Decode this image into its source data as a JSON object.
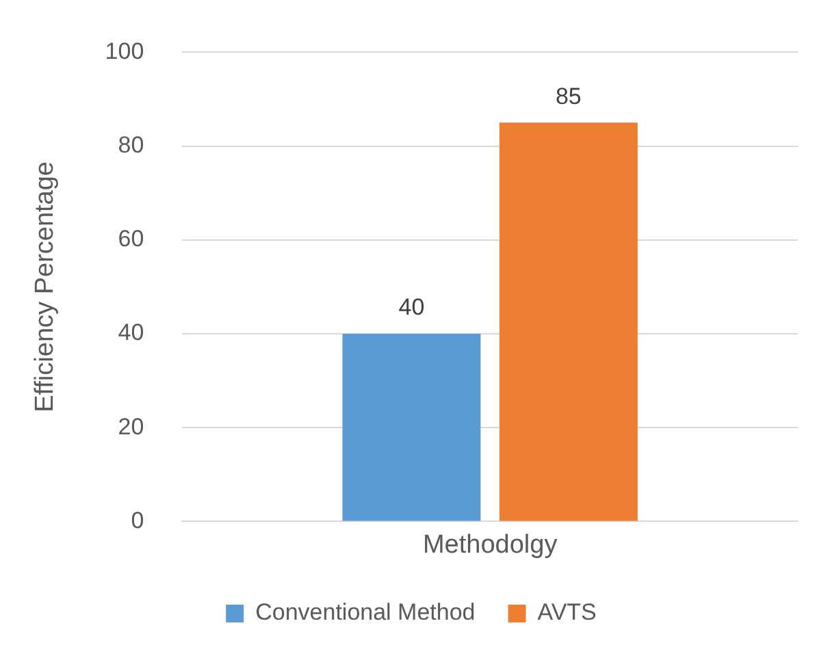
{
  "chart_data": {
    "type": "bar",
    "categories": [
      "Methodolgy"
    ],
    "ylabel": "Efficiency Percentage",
    "series": [
      {
        "name": "Conventional Method",
        "color": "#5b9bd5",
        "values": [
          40
        ]
      },
      {
        "name": "AVTS",
        "color": "#ed7d31",
        "values": [
          85
        ]
      }
    ],
    "ylim": [
      0,
      100
    ],
    "yticks": [
      0,
      20,
      40,
      60,
      80,
      100
    ],
    "grid": "y",
    "legend": "bottom",
    "data_labels": true
  }
}
